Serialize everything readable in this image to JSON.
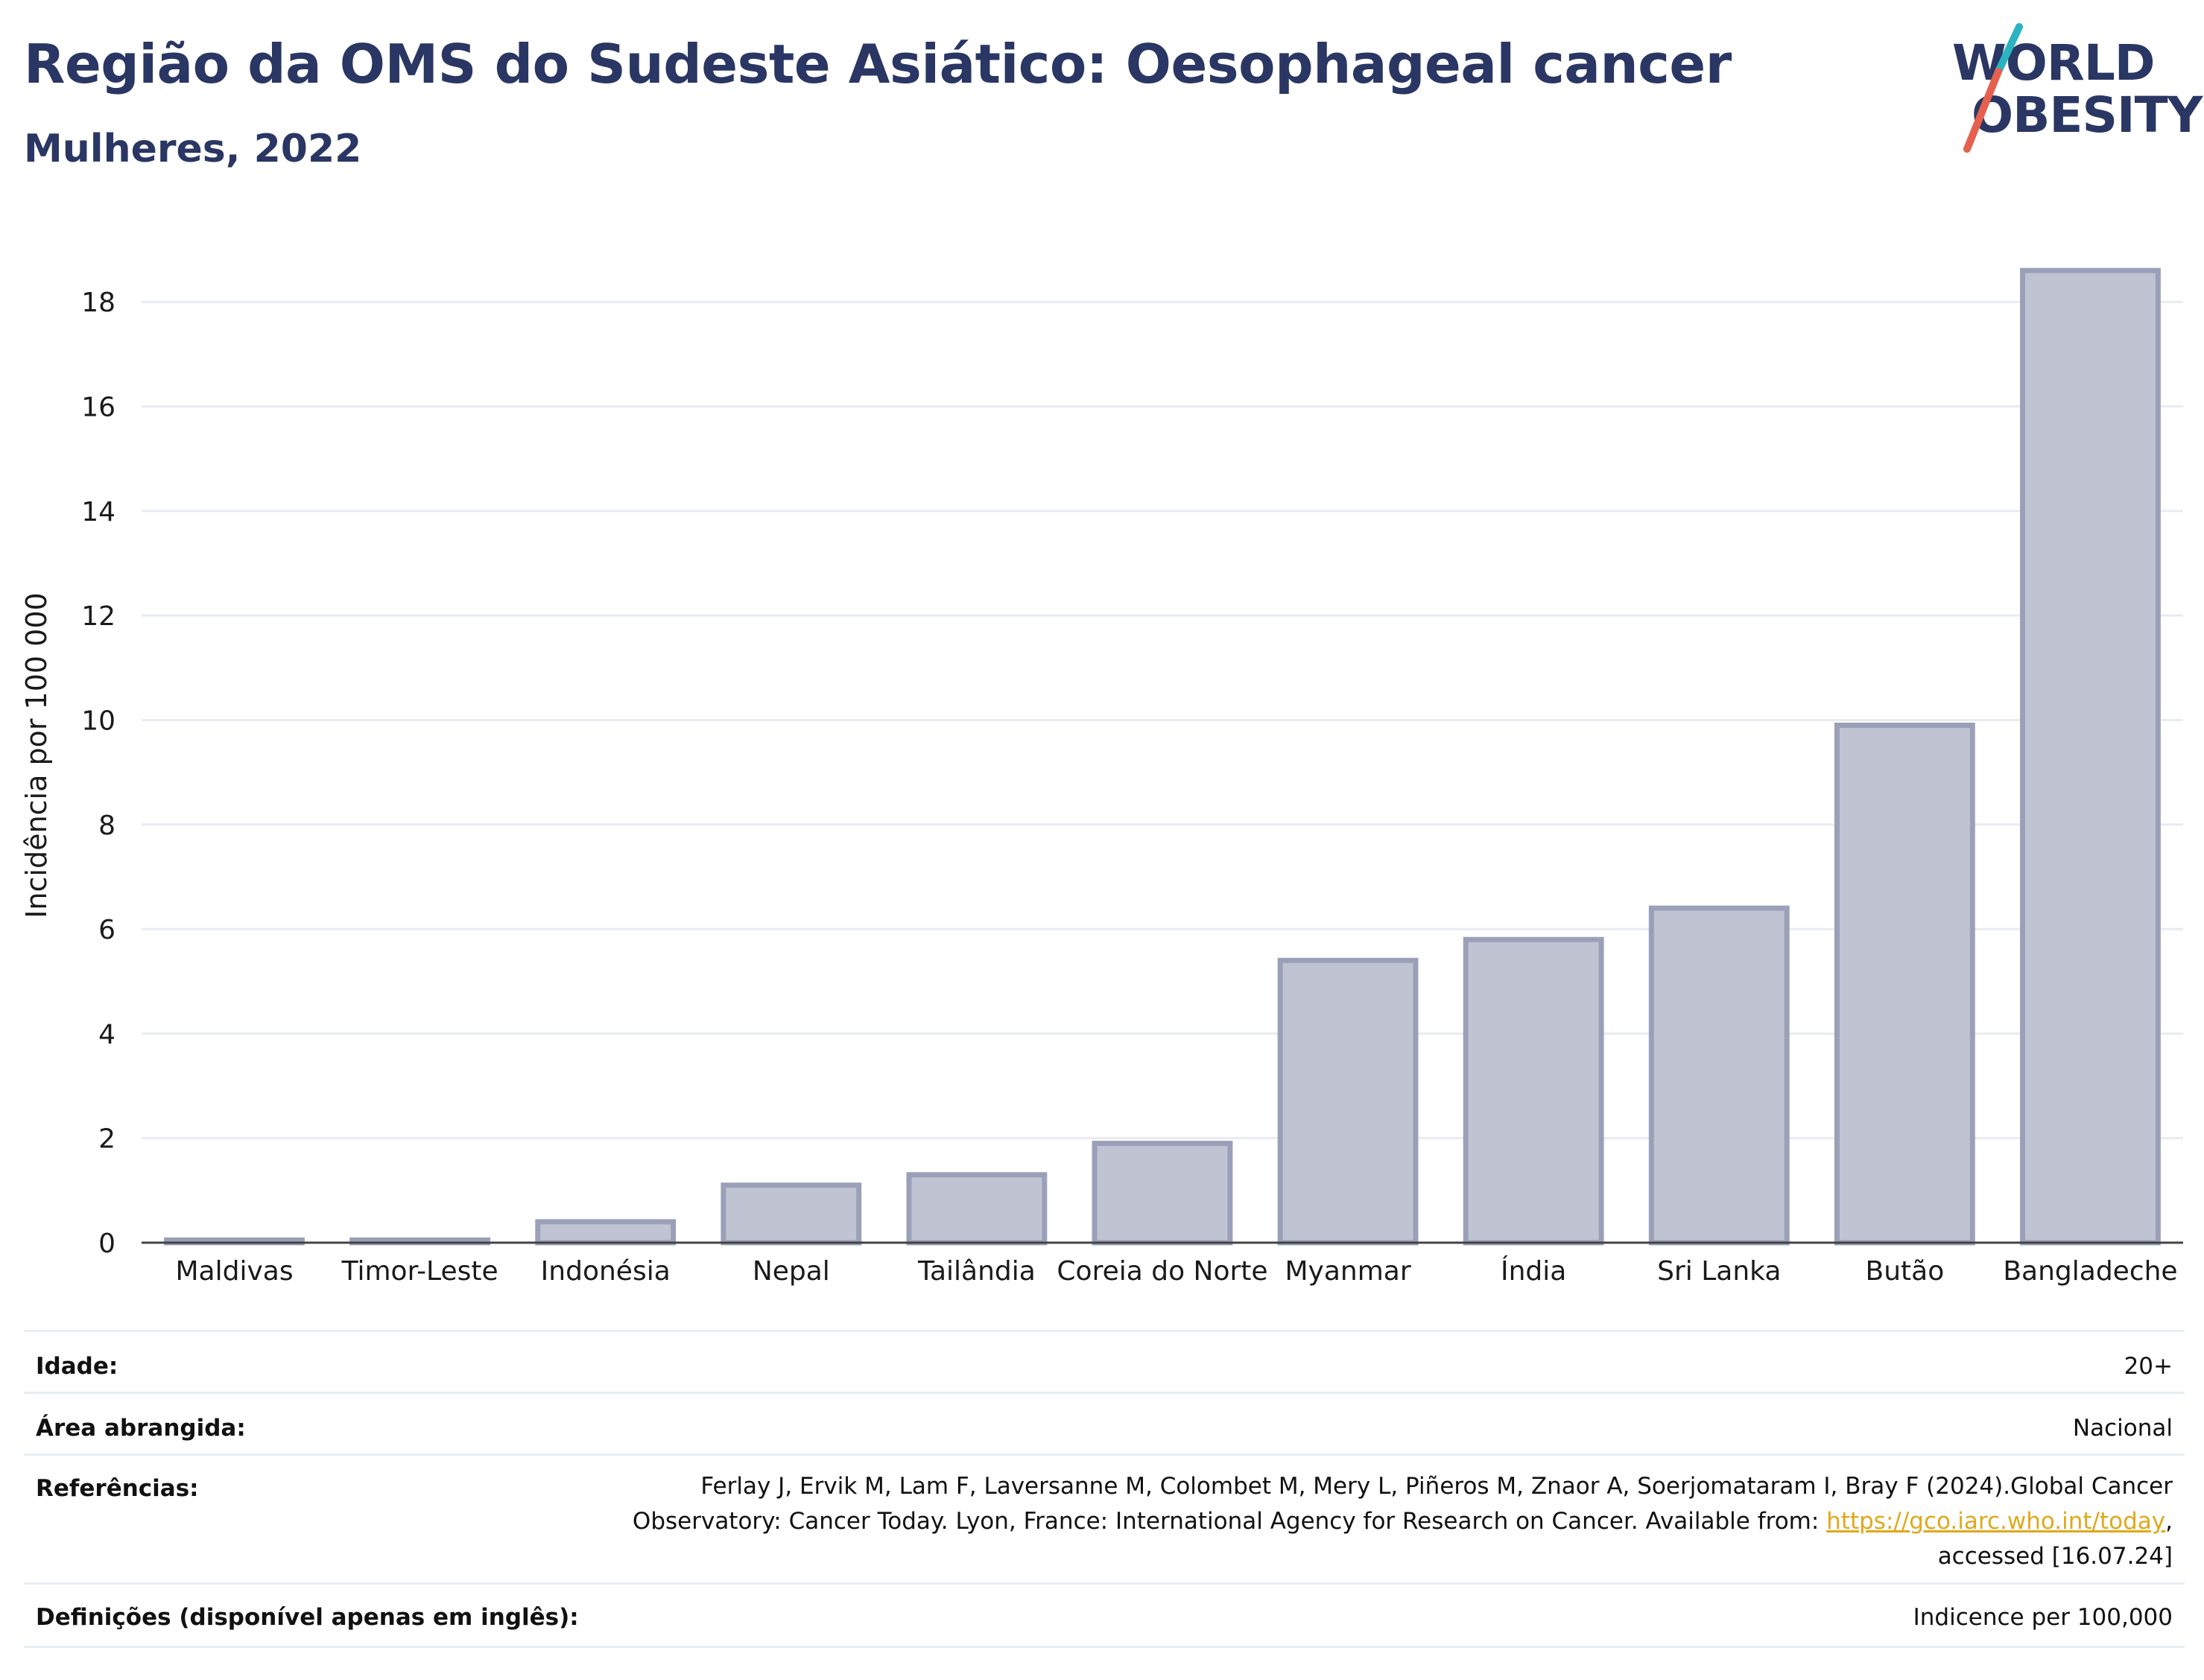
{
  "header": {
    "title": "Região da OMS do Sudeste Asiático: Oesophageal cancer",
    "subtitle": "Mulheres, 2022"
  },
  "logo": {
    "line1": "WORLD",
    "line2": "OBESITY",
    "accent_colors": [
      "#2bb3c0",
      "#e5604f"
    ],
    "text_color": "#2a3663"
  },
  "chart_data": {
    "type": "bar",
    "categories": [
      "Maldivas",
      "Timor-Leste",
      "Indonésia",
      "Nepal",
      "Tailândia",
      "Coreia do Norte",
      "Myanmar",
      "Índia",
      "Sri Lanka",
      "Butão",
      "Bangladeche"
    ],
    "values": [
      0.05,
      0.05,
      0.4,
      1.1,
      1.3,
      1.9,
      5.4,
      5.8,
      6.4,
      9.9,
      18.6
    ],
    "ylabel": "Incidência por 100 000",
    "xlabel": "",
    "ylim": [
      0,
      19.5
    ],
    "yticks": [
      0,
      2,
      4,
      6,
      8,
      10,
      12,
      14,
      16,
      18
    ],
    "grid": true,
    "bar_fill": "#c0c4d2",
    "bar_stroke": "#9aa0b8"
  },
  "info": {
    "rows": [
      {
        "label": "Idade:",
        "value": "20+"
      },
      {
        "label": "Área abrangida:",
        "value": "Nacional"
      }
    ],
    "references": {
      "label": "Referências:",
      "line1": "Ferlay J, Ervik M, Lam F, Laversanne M, Colombet M, Mery L, Piñeros M, Znaor A, Soerjomataram I, Bray F (2024).Global Cancer",
      "line2_prefix": "Observatory: Cancer Today. Lyon, France: International Agency for Research on Cancer. Available from: ",
      "link": "https://gco.iarc.who.int/today",
      "line2_suffix": ",",
      "line3": "accessed [16.07.24]"
    },
    "definitions": {
      "label": "Definições (disponível apenas em inglês):",
      "value": "Indicence per 100,000"
    }
  }
}
